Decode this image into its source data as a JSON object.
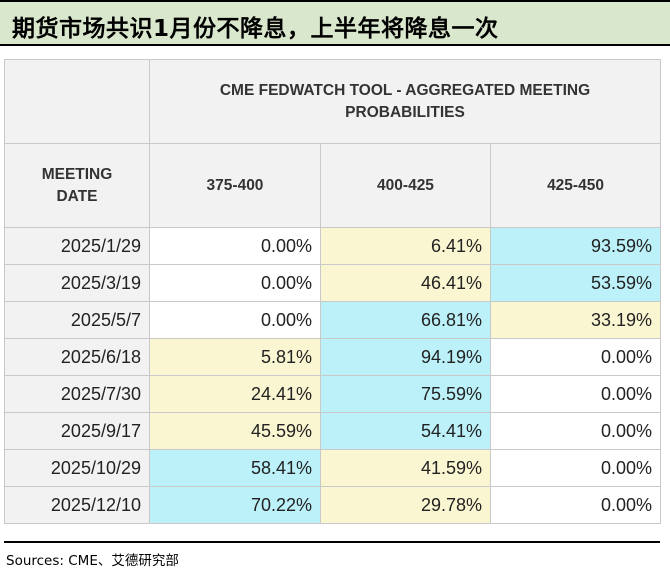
{
  "title": "期货市场共识1月份不降息，上半年将降息一次",
  "table": {
    "group_header": "CME FEDWATCH TOOL - AGGREGATED MEETING PROBABILITIES",
    "date_header_line1": "MEETING",
    "date_header_line2": "DATE",
    "columns": [
      "375-400",
      "400-425",
      "425-450"
    ],
    "rows": [
      {
        "date": "2025/1/29",
        "values": [
          "0.00%",
          "6.41%",
          "93.59%"
        ],
        "shade": [
          "white",
          "yellow",
          "cyan"
        ]
      },
      {
        "date": "2025/3/19",
        "values": [
          "0.00%",
          "46.41%",
          "53.59%"
        ],
        "shade": [
          "white",
          "yellow",
          "cyan"
        ]
      },
      {
        "date": "2025/5/7",
        "values": [
          "0.00%",
          "66.81%",
          "33.19%"
        ],
        "shade": [
          "white",
          "cyan",
          "yellow"
        ]
      },
      {
        "date": "2025/6/18",
        "values": [
          "5.81%",
          "94.19%",
          "0.00%"
        ],
        "shade": [
          "yellow",
          "cyan",
          "white"
        ]
      },
      {
        "date": "2025/7/30",
        "values": [
          "24.41%",
          "75.59%",
          "0.00%"
        ],
        "shade": [
          "yellow",
          "cyan",
          "white"
        ]
      },
      {
        "date": "2025/9/17",
        "values": [
          "45.59%",
          "54.41%",
          "0.00%"
        ],
        "shade": [
          "yellow",
          "cyan",
          "white"
        ]
      },
      {
        "date": "2025/10/29",
        "values": [
          "58.41%",
          "41.59%",
          "0.00%"
        ],
        "shade": [
          "cyan",
          "yellow",
          "white"
        ]
      },
      {
        "date": "2025/12/10",
        "values": [
          "70.22%",
          "29.78%",
          "0.00%"
        ],
        "shade": [
          "cyan",
          "yellow",
          "white"
        ]
      }
    ]
  },
  "colors": {
    "title_bg": "#d9e7cc",
    "header_bg": "#f2f2f2",
    "yellow": "#faf6d2",
    "cyan": "#bcf1f9"
  },
  "source": "Sources: CME、艾德研究部"
}
